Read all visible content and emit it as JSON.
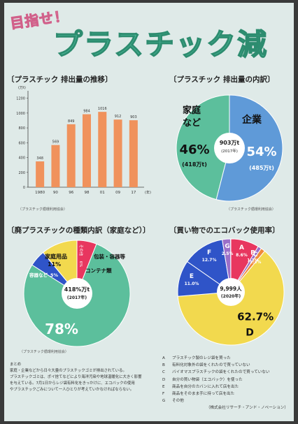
{
  "poster": {
    "subtitle": "目指せ！",
    "title": "プラスチック減"
  },
  "summary": {
    "heading": "まとめ",
    "lines": [
      "家庭・企業などから日々大量のプラスチックゴミが排出されている。",
      "プラスチックゴミは、ポイ捨てなどにより海洋汚染や地球温暖化に大きく影響",
      "を与えている。7月1日からレジ袋有料化をきっかけに、エコバックの使用",
      "やプラスチックごみについて一人ひとりが考えていかなければならない。"
    ]
  },
  "legend": [
    {
      "key": "A",
      "text": "プラスチック製のレジ袋を買った"
    },
    {
      "key": "B",
      "text": "有料化対象外の袋をくれたので買っていない"
    },
    {
      "key": "C",
      "text": "バイオマスプラスチックの袋をくれたので買っていない"
    },
    {
      "key": "D",
      "text": "自分の買い物袋（エコバック）を使った"
    },
    {
      "key": "E",
      "text": "商品を自分のカバンに入れて店を出た"
    },
    {
      "key": "F",
      "text": "商品をそのまま手に持って店を出た"
    },
    {
      "key": "G",
      "text": "その他"
    }
  ],
  "legend_credit": "（株式会社リサーチ・アンド・ノベーション）",
  "colors": {
    "orange": "#f0925c",
    "teal": "#5cbf9c",
    "blue": "#5f9ad8",
    "red": "#e8365f",
    "yellow": "#f2d94e",
    "purple": "#9b6fc8",
    "orange2": "#f08a3a",
    "green": "#3f9f6a",
    "darkblue": "#2f54c8"
  },
  "chart_data": [
    {
      "type": "bar",
      "title": "〔プラスチック 排出量の推移〕",
      "ylabel": "(万t)",
      "xunit": "(年)",
      "categories": [
        "1980",
        "90",
        "96",
        "98",
        "01",
        "09",
        "17"
      ],
      "values": [
        348,
        569,
        849,
        984,
        1016,
        912,
        903
      ],
      "value_labels": [
        "348",
        "569",
        "849",
        "984",
        "1016",
        "912",
        "903"
      ],
      "yticks": [
        0,
        200,
        400,
        600,
        800,
        1000,
        1200
      ],
      "ylim": [
        0,
        1300
      ],
      "source": "（プラスチック循環利用協会）"
    },
    {
      "type": "pie",
      "title": "〔プラスチック 排出量の内訳〕",
      "center_value": "903",
      "center_unit": "万t",
      "center_year": "(2017年)",
      "slices": [
        {
          "name": "企業",
          "percent": 54,
          "pct_label": "54%",
          "amount": "(485万t)"
        },
        {
          "name": "家庭など",
          "percent": 46,
          "pct_label": "46%",
          "amount": "(418万t)"
        }
      ],
      "source": "（プラスチック循環利用協会）"
    },
    {
      "type": "pie",
      "title": "〔廃プラスチックの種類内訳（家庭など）〕",
      "center_value": "418%万t",
      "center_year": "(2017年)",
      "slices": [
        {
          "name": "その他",
          "percent": 6,
          "pct_label": "6%"
        },
        {
          "name": "包装・容器等 コンテナ類",
          "percent": 78,
          "pct_label": "78%"
        },
        {
          "name": "容器など",
          "percent": 5,
          "pct_label": "5%"
        },
        {
          "name": "家庭用品",
          "percent": 11,
          "pct_label": "11%"
        }
      ],
      "source": "（プラスチック循環利用協会）"
    },
    {
      "type": "pie",
      "title": "〔買い物でのエコバック使用率〕",
      "center_value": "9,999人",
      "center_year": "(2020年)",
      "slices": [
        {
          "name": "A",
          "percent": 8.6,
          "pct_label": "8.6%"
        },
        {
          "name": "B",
          "percent": 1.1,
          "pct_label": "1.1%"
        },
        {
          "name": "C",
          "percent": 1.3,
          "pct_label": "1.3%"
        },
        {
          "name": "D",
          "percent": 62.7,
          "pct_label": "62.7%"
        },
        {
          "name": "E",
          "percent": 11.0,
          "pct_label": "11.0%"
        },
        {
          "name": "F",
          "percent": 12.7,
          "pct_label": "12.7%"
        },
        {
          "name": "G",
          "percent": 2.5,
          "pct_label": "2.5%"
        }
      ]
    }
  ]
}
